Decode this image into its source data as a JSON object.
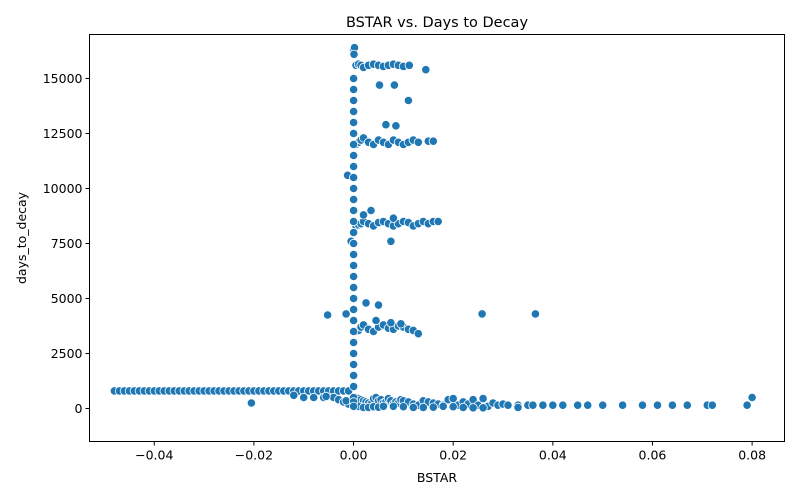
{
  "chart_data": {
    "type": "scatter",
    "title": "BSTAR vs. Days to Decay",
    "xlabel": "BSTAR",
    "ylabel": "days_to_decay",
    "xlim": [
      -0.053,
      0.0865
    ],
    "ylim": [
      -1500,
      17000
    ],
    "x_ticks": [
      -0.04,
      -0.02,
      0.0,
      0.02,
      0.04,
      0.06,
      0.08
    ],
    "x_tick_labels": [
      "−0.04",
      "−0.02",
      "0.00",
      "0.02",
      "0.04",
      "0.06",
      "0.08"
    ],
    "y_ticks": [
      0,
      2500,
      5000,
      7500,
      10000,
      12500,
      15000
    ],
    "y_tick_labels": [
      "0",
      "2500",
      "5000",
      "7500",
      "10000",
      "12500",
      "15000"
    ],
    "grid": false,
    "legend": "none",
    "point_color": "#1f77b4",
    "series": [
      {
        "x": [
          -0.048,
          -0.047,
          -0.046,
          -0.045,
          -0.044,
          -0.043,
          -0.042,
          -0.041,
          -0.04,
          -0.039,
          -0.038,
          -0.037,
          -0.036,
          -0.035,
          -0.034,
          -0.033,
          -0.032,
          -0.031,
          -0.03,
          -0.029,
          -0.028,
          -0.027,
          -0.026,
          -0.025,
          -0.024,
          -0.023,
          -0.022,
          -0.021,
          -0.02,
          -0.019,
          -0.018,
          -0.017,
          -0.016,
          -0.015,
          -0.014,
          -0.013,
          -0.012,
          -0.011,
          -0.01,
          -0.009,
          -0.008,
          -0.007,
          -0.006,
          -0.005,
          -0.004,
          -0.003,
          -0.002,
          -0.001,
          -0.0205,
          -0.012,
          -0.01,
          -0.008,
          -0.006,
          -0.004,
          -0.003,
          -0.002,
          -0.001,
          -0.0055,
          -0.0015,
          0.0005,
          0.001,
          0.0015,
          0.002,
          0.0025,
          0.003,
          0.0035,
          0.004,
          0.0045,
          0.005,
          0.0055,
          0.006,
          0.0065,
          0.007,
          0.0075,
          0.008,
          0.0085,
          0.009,
          0.0095,
          0.01,
          0.011,
          0.012,
          0.013,
          0.014,
          0.015,
          0.016,
          0.017,
          0.018,
          0.019,
          0.02,
          0.021,
          0.022,
          0.023,
          0.024,
          0.025,
          0.026,
          0.027,
          0.028,
          0.029,
          0.03,
          0.031,
          0.033,
          0.035,
          0.036,
          0.038,
          0.04,
          0.042,
          0.045,
          0.047,
          0.05,
          0.054,
          0.058,
          0.061,
          0.064,
          0.067,
          0.071,
          0.072,
          0.079,
          0.08,
          0.001,
          0.002,
          0.003,
          0.004,
          0.005,
          0.006,
          0.008,
          0.01,
          0.012,
          0.014,
          0.016,
          0.018,
          0.02,
          0.022,
          0.024,
          0.026,
          0.033,
          0.0005,
          0.001,
          0.0015,
          0.002,
          0.003,
          0.004,
          0.005,
          0.006,
          0.007,
          0.008,
          0.009,
          0.01,
          0.011,
          0.012,
          0.013,
          0.0045,
          0.0075,
          0.0095,
          -0.0052,
          -0.0015,
          0.0258,
          0.0365,
          0.0025,
          0.005,
          0.0005,
          0.001,
          0.0015,
          0.002,
          0.003,
          0.004,
          0.005,
          0.006,
          0.007,
          0.008,
          0.009,
          0.01,
          0.011,
          0.012,
          0.013,
          0.014,
          0.015,
          0.016,
          0.017,
          0.0035,
          0.0075,
          -0.0012,
          -0.0005,
          0.002,
          0.008,
          0.0005,
          0.001,
          0.0015,
          0.002,
          0.003,
          0.004,
          0.005,
          0.006,
          0.007,
          0.008,
          0.009,
          0.01,
          0.011,
          0.012,
          0.013,
          0.015,
          0.016,
          0.0065,
          0.0085,
          0.011,
          0.0005,
          0.001,
          0.0015,
          0.002,
          0.003,
          0.004,
          0.005,
          0.006,
          0.007,
          0.008,
          0.009,
          0.01,
          0.0145,
          0.0052,
          0.0082,
          0.0112,
          0.0,
          0.0002,
          0.0001,
          0.0,
          0.0,
          0.0,
          0.0,
          0.0,
          0.0,
          0.0,
          0.0,
          0.0,
          0.0,
          0.0,
          0.0,
          0.0,
          0.0,
          0.0,
          0.0,
          0.0,
          0.0,
          0.0,
          0.0,
          0.0,
          0.0,
          0.0,
          0.0,
          0.0,
          0.0,
          0.0,
          0.0,
          0.0,
          0.0,
          0.0,
          0.0
        ],
        "y": [
          800,
          800,
          800,
          800,
          800,
          800,
          800,
          800,
          800,
          800,
          800,
          800,
          800,
          800,
          800,
          800,
          800,
          800,
          800,
          800,
          800,
          800,
          800,
          800,
          800,
          800,
          800,
          800,
          800,
          800,
          800,
          800,
          800,
          800,
          800,
          800,
          800,
          800,
          800,
          800,
          800,
          800,
          800,
          800,
          800,
          800,
          800,
          800,
          250,
          600,
          500,
          500,
          500,
          500,
          400,
          300,
          200,
          550,
          350,
          500,
          450,
          400,
          350,
          300,
          250,
          200,
          450,
          500,
          350,
          400,
          250,
          300,
          450,
          350,
          200,
          300,
          250,
          400,
          350,
          300,
          200,
          150,
          350,
          300,
          250,
          200,
          150,
          400,
          450,
          150,
          300,
          200,
          400,
          150,
          450,
          100,
          250,
          150,
          200,
          150,
          150,
          150,
          150,
          150,
          150,
          150,
          150,
          150,
          150,
          150,
          150,
          150,
          150,
          150,
          150,
          150,
          150,
          500,
          100,
          50,
          50,
          80,
          60,
          100,
          100,
          80,
          50,
          50,
          60,
          100,
          80,
          50,
          30,
          30,
          50,
          3500,
          3550,
          3700,
          3800,
          3600,
          3500,
          3700,
          3800,
          3650,
          3600,
          3750,
          3700,
          3600,
          3550,
          3400,
          4000,
          3900,
          3850,
          4250,
          4300,
          4300,
          4300,
          4800,
          4700,
          8300,
          8350,
          8400,
          8500,
          8400,
          8300,
          8450,
          8500,
          8400,
          8300,
          8400,
          8500,
          8450,
          8300,
          8400,
          8500,
          8400,
          8500,
          8500,
          9000,
          7600,
          10600,
          7600,
          8800,
          8650,
          12000,
          12100,
          12200,
          12300,
          12100,
          12000,
          12200,
          12100,
          12000,
          12200,
          12100,
          12000,
          12100,
          12200,
          12100,
          12150,
          12150,
          12900,
          12850,
          14000,
          15600,
          15650,
          15600,
          15500,
          15600,
          15650,
          15600,
          15550,
          15600,
          15650,
          15600,
          15550,
          15400,
          14700,
          14700,
          15600,
          16300,
          16400,
          16100,
          1000,
          2000,
          3000,
          4000,
          5000,
          6000,
          7000,
          8000,
          9000,
          10000,
          11000,
          12000,
          13000,
          14000,
          15000,
          1500,
          2500,
          3500,
          4500,
          5500,
          6500,
          7500,
          8500,
          9500,
          10500,
          11500,
          12500,
          13500,
          14500,
          500,
          300,
          100
        ]
      }
    ]
  }
}
